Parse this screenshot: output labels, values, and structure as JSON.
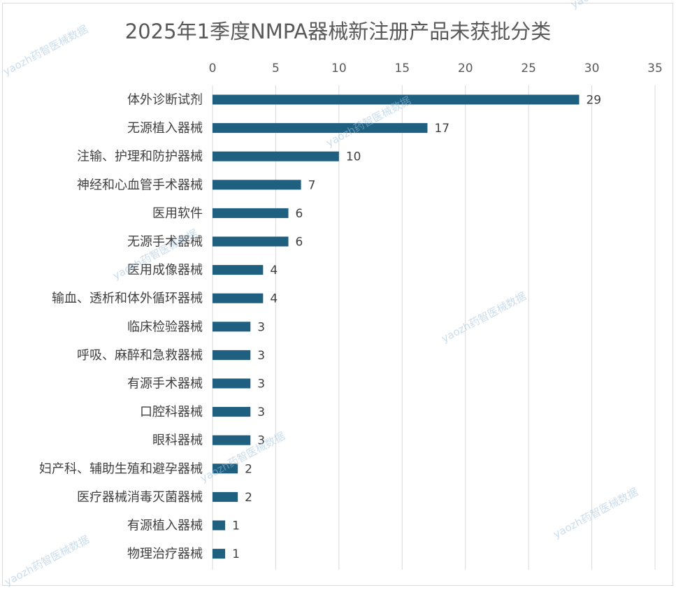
{
  "chart_data": {
    "type": "bar",
    "orientation": "horizontal",
    "title": "2025年1季度NMPA器械新注册产品未获批分类",
    "categories": [
      "体外诊断试剂",
      "无源植入器械",
      "注输、护理和防护器械",
      "神经和心血管手术器械",
      "医用软件",
      "无源手术器械",
      "医用成像器械",
      "输血、透析和体外循环器械",
      "临床检验器械",
      "呼吸、麻醉和急救器械",
      "有源手术器械",
      "口腔科器械",
      "眼科器械",
      "妇产科、辅助生殖和避孕器械",
      "医疗器械消毒灭菌器械",
      "有源植入器械",
      "物理治疗器械"
    ],
    "values": [
      29,
      17,
      10,
      7,
      6,
      6,
      4,
      4,
      3,
      3,
      3,
      3,
      3,
      2,
      2,
      1,
      1
    ],
    "xlim": [
      0,
      35
    ],
    "x_ticks": [
      0,
      5,
      10,
      15,
      20,
      25,
      30,
      35
    ],
    "x_axis_position": "top",
    "grid": true,
    "bar_color": "#1f5f80",
    "grid_color": "#d9d9d9"
  },
  "watermark": "yaozh药智医械数据"
}
